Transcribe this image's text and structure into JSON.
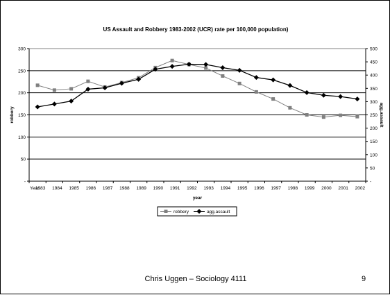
{
  "slide": {
    "footer": "Chris Uggen – Sociology 4111",
    "page_number": "9"
  },
  "chart_data": {
    "type": "line",
    "title": "US Assault and Robbery 1983-2002 (UCR) rate per 100,000 population)",
    "xlabel": "year",
    "ylabel": "robbery",
    "y2label": "agg.assault",
    "x_prefix_label": "Year:",
    "categories": [
      "1983",
      "1984",
      "1985",
      "1986",
      "1987",
      "1988",
      "1989",
      "1990",
      "1991",
      "1992",
      "1993",
      "1994",
      "1995",
      "1996",
      "1997",
      "1998",
      "1999",
      "2000",
      "2001",
      "2002"
    ],
    "ylim": [
      0,
      300
    ],
    "y2lim": [
      0,
      500
    ],
    "yticks": [
      "-",
      "50",
      "100",
      "150",
      "200",
      "250",
      "300"
    ],
    "y2ticks": [
      "-",
      "50",
      "100",
      "150",
      "200",
      "250",
      "300",
      "350",
      "400",
      "450",
      "500"
    ],
    "legend_position": "bottom-center",
    "series": [
      {
        "name": "robbery",
        "axis": "left",
        "color": "#808080",
        "marker": "square",
        "values": [
          217,
          206,
          209,
          226,
          213,
          223,
          234,
          257,
          273,
          264,
          256,
          238,
          221,
          202,
          186,
          166,
          150,
          145,
          149,
          146
        ]
      },
      {
        "name": "agg.assault",
        "axis": "right",
        "color": "#000000",
        "marker": "diamond",
        "values": [
          280,
          291,
          302,
          347,
          352,
          369,
          384,
          422,
          433,
          441,
          440,
          428,
          418,
          391,
          382,
          361,
          334,
          324,
          319,
          310
        ]
      }
    ]
  }
}
